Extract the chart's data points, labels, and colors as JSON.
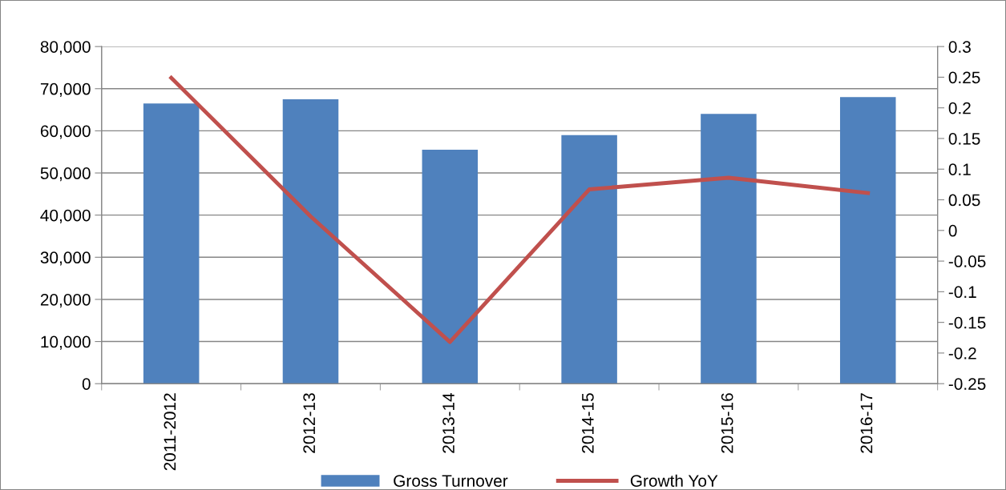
{
  "chart_data": {
    "type": "bar",
    "categories": [
      "2011-2012",
      "2012-13",
      "2013-14",
      "2014-15",
      "2015-16",
      "2016-17"
    ],
    "series": [
      {
        "name": "Gross Turnover",
        "color": "#4f81bd",
        "values": [
          66500,
          67500,
          55500,
          59000,
          64000,
          68000
        ]
      },
      {
        "name": "Growth YoY",
        "type": "line",
        "axis": "y2",
        "color": "#c0504d",
        "values": [
          0.249,
          0.023,
          -0.182,
          0.067,
          0.086,
          0.061
        ]
      }
    ],
    "ylim": [
      0,
      80000
    ],
    "yticks": [
      {
        "value": 0,
        "label": "0"
      },
      {
        "value": 10000,
        "label": "10,000"
      },
      {
        "value": 20000,
        "label": "20,000"
      },
      {
        "value": 30000,
        "label": "30,000"
      },
      {
        "value": 40000,
        "label": "40,000"
      },
      {
        "value": 50000,
        "label": "50,000"
      },
      {
        "value": 60000,
        "label": "60,000"
      },
      {
        "value": 70000,
        "label": "70,000"
      },
      {
        "value": 80000,
        "label": "80,000"
      }
    ],
    "y2lim": [
      -0.25,
      0.3
    ],
    "y2ticks": [
      {
        "value": -0.25,
        "label": "-0.25"
      },
      {
        "value": -0.2,
        "label": "-0.2"
      },
      {
        "value": -0.15,
        "label": "-0.15"
      },
      {
        "value": -0.1,
        "label": "-0.1"
      },
      {
        "value": -0.05,
        "label": "-0.05"
      },
      0,
      0.05,
      0.1,
      0.15,
      0.2,
      0.25,
      0.3
    ],
    "grid": "y",
    "legend": "bottom",
    "marker": "none",
    "line_style": "solid"
  }
}
